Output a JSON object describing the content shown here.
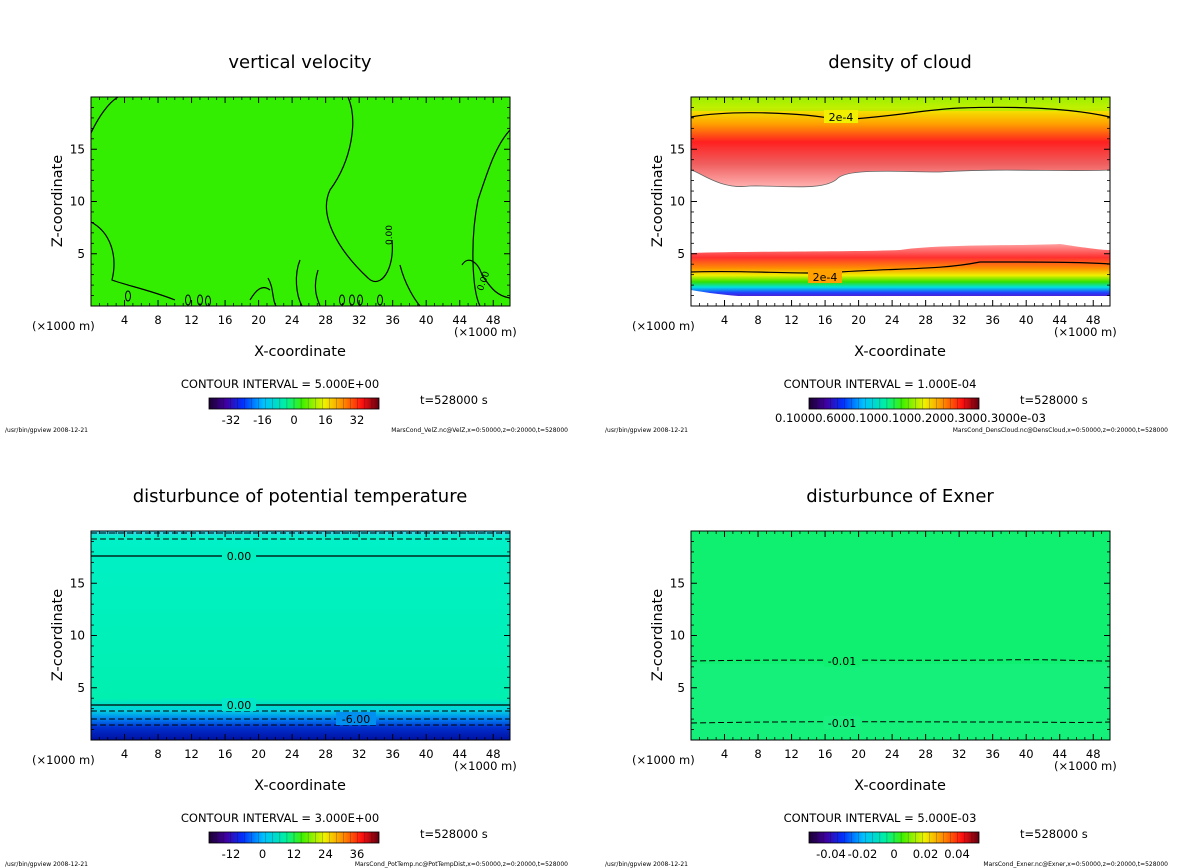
{
  "panels": [
    {
      "title": "vertical velocity",
      "xlabel": "X-coordinate",
      "ylabel": "Z-coordinate",
      "unit_label": "(×1000 m)",
      "contour_interval": "CONTOUR INTERVAL = 5.000E+00",
      "time": "t=528000 s",
      "footer_left": "/usr/bin/gpview  2008-12-21",
      "footer_right": "MarsCond_VelZ.nc@VelZ,x=0:50000,z=0:20000,t=528000",
      "contour_labels": [
        "0.00",
        "0.00"
      ],
      "colorbar_ticks": [
        "-32",
        "-16",
        "0",
        "16",
        "32"
      ]
    },
    {
      "title": "density of cloud",
      "xlabel": "X-coordinate",
      "ylabel": "Z-coordinate",
      "unit_label": "(×1000 m)",
      "contour_interval": "CONTOUR INTERVAL = 1.000E-04",
      "time": "t=528000 s",
      "footer_left": "/usr/bin/gpview  2008-12-21",
      "footer_right": "MarsCond_DensCloud.nc@DensCloud,x=0:50000,z=0:20000,t=528000",
      "contour_labels": [
        "2e-4",
        "2e-4"
      ],
      "colorbar_ticks_overlap": "0.10000.6000.1000.1000.2000.3000.3000e-03"
    },
    {
      "title": "disturbunce of potential temperature",
      "xlabel": "X-coordinate",
      "ylabel": "Z-coordinate",
      "unit_label": "(×1000 m)",
      "contour_interval": "CONTOUR INTERVAL = 3.000E+00",
      "time": "t=528000 s",
      "footer_left": "/usr/bin/gpview  2008-12-21",
      "footer_right": "MarsCond_PotTemp.nc@PotTempDist,x=0:50000,z=0:20000,t=528000",
      "contour_labels": [
        "0.00",
        "0.00",
        "-6.00"
      ],
      "colorbar_ticks": [
        "-12",
        "0",
        "12",
        "24",
        "36"
      ]
    },
    {
      "title": "disturbunce of Exner",
      "xlabel": "X-coordinate",
      "ylabel": "Z-coordinate",
      "unit_label": "(×1000 m)",
      "contour_interval": "CONTOUR INTERVAL = 5.000E-03",
      "time": "t=528000 s",
      "footer_left": "/usr/bin/gpview  2008-12-21",
      "footer_right": "MarsCond_Exner.nc@Exner,x=0:50000,z=0:20000,t=528000",
      "contour_labels": [
        "-0.01",
        "-0.01"
      ],
      "colorbar_ticks": [
        "-0.04",
        "-0.02",
        "0",
        "0.02",
        "0.04"
      ]
    }
  ],
  "chart_data": [
    {
      "type": "heatmap",
      "title": "vertical velocity",
      "xlabel": "X-coordinate",
      "ylabel": "Z-coordinate",
      "x_ticks": [
        4,
        8,
        12,
        16,
        20,
        24,
        28,
        32,
        36,
        40,
        44,
        48
      ],
      "y_ticks": [
        5,
        10,
        15
      ],
      "xlim": [
        0,
        50
      ],
      "ylim": [
        0,
        20
      ],
      "colorbar_range": [
        -40,
        40
      ],
      "contour_interval": 5.0,
      "contour_levels_labeled": [
        0.0,
        0.0
      ]
    },
    {
      "type": "heatmap",
      "title": "density of cloud",
      "xlabel": "X-coordinate",
      "ylabel": "Z-coordinate",
      "x_ticks": [
        4,
        8,
        12,
        16,
        20,
        24,
        28,
        32,
        36,
        40,
        44,
        48
      ],
      "y_ticks": [
        5,
        10,
        15
      ],
      "xlim": [
        0,
        50
      ],
      "ylim": [
        0,
        20
      ],
      "contour_interval": 0.0001,
      "contour_levels_labeled": [
        0.0002,
        0.0002
      ]
    },
    {
      "type": "heatmap",
      "title": "disturbunce of potential temperature",
      "xlabel": "X-coordinate",
      "ylabel": "Z-coordinate",
      "x_ticks": [
        4,
        8,
        12,
        16,
        20,
        24,
        28,
        32,
        36,
        40,
        44,
        48
      ],
      "y_ticks": [
        5,
        10,
        15
      ],
      "xlim": [
        0,
        50
      ],
      "ylim": [
        0,
        20
      ],
      "colorbar_range": [
        -18,
        42
      ],
      "contour_interval": 3.0,
      "contour_levels_labeled": [
        0.0,
        0.0,
        -6.0
      ]
    },
    {
      "type": "heatmap",
      "title": "disturbunce of Exner",
      "xlabel": "X-coordinate",
      "ylabel": "Z-coordinate",
      "x_ticks": [
        4,
        8,
        12,
        16,
        20,
        24,
        28,
        32,
        36,
        40,
        44,
        48
      ],
      "y_ticks": [
        5,
        10,
        15
      ],
      "xlim": [
        0,
        50
      ],
      "ylim": [
        0,
        20
      ],
      "colorbar_range": [
        -0.05,
        0.05
      ],
      "contour_interval": 0.005,
      "contour_levels_labeled": [
        -0.01,
        -0.01
      ]
    }
  ],
  "colors": {
    "green_field": "#33ee00",
    "teal_field": "#00f0b8",
    "exner_field": "#10f070",
    "cloud_red": "#e62020",
    "cloud_yellow": "#f0f000",
    "cold_blue": "#0010c0"
  }
}
